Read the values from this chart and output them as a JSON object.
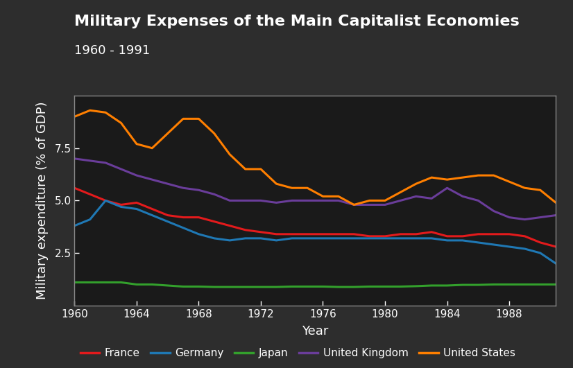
{
  "title": "Military Expenses of the Main Capitalist Economies",
  "subtitle": "1960 - 1991",
  "xlabel": "Year",
  "ylabel": "Military expenditure (% of GDP)",
  "background_color": "#2d2d2d",
  "plot_bg_color": "#1a1a1a",
  "text_color": "#ffffff",
  "spine_color": "#888888",
  "xlim": [
    1960,
    1991
  ],
  "ylim": [
    0,
    10
  ],
  "yticks": [
    2.5,
    5.0,
    7.5
  ],
  "xticks": [
    1960,
    1964,
    1968,
    1972,
    1976,
    1980,
    1984,
    1988
  ],
  "series": {
    "France": {
      "color": "#e31a1c",
      "years": [
        1960,
        1961,
        1962,
        1963,
        1964,
        1965,
        1966,
        1967,
        1968,
        1969,
        1970,
        1971,
        1972,
        1973,
        1974,
        1975,
        1976,
        1977,
        1978,
        1979,
        1980,
        1981,
        1982,
        1983,
        1984,
        1985,
        1986,
        1987,
        1988,
        1989,
        1990,
        1991
      ],
      "values": [
        5.6,
        5.3,
        5.0,
        4.8,
        4.9,
        4.6,
        4.3,
        4.2,
        4.2,
        4.0,
        3.8,
        3.6,
        3.5,
        3.4,
        3.4,
        3.4,
        3.4,
        3.4,
        3.4,
        3.3,
        3.3,
        3.4,
        3.4,
        3.5,
        3.3,
        3.3,
        3.4,
        3.4,
        3.4,
        3.3,
        3.0,
        2.8
      ]
    },
    "Germany": {
      "color": "#1f78b4",
      "years": [
        1960,
        1961,
        1962,
        1963,
        1964,
        1965,
        1966,
        1967,
        1968,
        1969,
        1970,
        1971,
        1972,
        1973,
        1974,
        1975,
        1976,
        1977,
        1978,
        1979,
        1980,
        1981,
        1982,
        1983,
        1984,
        1985,
        1986,
        1987,
        1988,
        1989,
        1990,
        1991
      ],
      "values": [
        3.8,
        4.1,
        5.0,
        4.7,
        4.6,
        4.3,
        4.0,
        3.7,
        3.4,
        3.2,
        3.1,
        3.2,
        3.2,
        3.1,
        3.2,
        3.2,
        3.2,
        3.2,
        3.2,
        3.2,
        3.2,
        3.2,
        3.2,
        3.2,
        3.1,
        3.1,
        3.0,
        2.9,
        2.8,
        2.7,
        2.5,
        2.0
      ]
    },
    "Japan": {
      "color": "#33a02c",
      "years": [
        1960,
        1961,
        1962,
        1963,
        1964,
        1965,
        1966,
        1967,
        1968,
        1969,
        1970,
        1971,
        1972,
        1973,
        1974,
        1975,
        1976,
        1977,
        1978,
        1979,
        1980,
        1981,
        1982,
        1983,
        1984,
        1985,
        1986,
        1987,
        1988,
        1989,
        1990,
        1991
      ],
      "values": [
        1.1,
        1.1,
        1.1,
        1.1,
        1.0,
        1.0,
        0.95,
        0.9,
        0.9,
        0.88,
        0.88,
        0.88,
        0.88,
        0.88,
        0.9,
        0.9,
        0.9,
        0.88,
        0.88,
        0.9,
        0.9,
        0.9,
        0.92,
        0.95,
        0.95,
        0.98,
        0.98,
        1.0,
        1.0,
        1.0,
        1.0,
        1.0
      ]
    },
    "United Kingdom": {
      "color": "#6a3d9a",
      "years": [
        1960,
        1961,
        1962,
        1963,
        1964,
        1965,
        1966,
        1967,
        1968,
        1969,
        1970,
        1971,
        1972,
        1973,
        1974,
        1975,
        1976,
        1977,
        1978,
        1979,
        1980,
        1981,
        1982,
        1983,
        1984,
        1985,
        1986,
        1987,
        1988,
        1989,
        1990,
        1991
      ],
      "values": [
        7.0,
        6.9,
        6.8,
        6.5,
        6.2,
        6.0,
        5.8,
        5.6,
        5.5,
        5.3,
        5.0,
        5.0,
        5.0,
        4.9,
        5.0,
        5.0,
        5.0,
        5.0,
        4.8,
        4.8,
        4.8,
        5.0,
        5.2,
        5.1,
        5.6,
        5.2,
        5.0,
        4.5,
        4.2,
        4.1,
        4.2,
        4.3
      ]
    },
    "United States": {
      "color": "#ff7f00",
      "years": [
        1960,
        1961,
        1962,
        1963,
        1964,
        1965,
        1966,
        1967,
        1968,
        1969,
        1970,
        1971,
        1972,
        1973,
        1974,
        1975,
        1976,
        1977,
        1978,
        1979,
        1980,
        1981,
        1982,
        1983,
        1984,
        1985,
        1986,
        1987,
        1988,
        1989,
        1990,
        1991
      ],
      "values": [
        9.0,
        9.3,
        9.2,
        8.7,
        7.7,
        7.5,
        8.2,
        8.9,
        8.9,
        8.2,
        7.2,
        6.5,
        6.5,
        5.8,
        5.6,
        5.6,
        5.2,
        5.2,
        4.8,
        5.0,
        5.0,
        5.4,
        5.8,
        6.1,
        6.0,
        6.1,
        6.2,
        6.2,
        5.9,
        5.6,
        5.5,
        4.9
      ]
    }
  },
  "legend_order": [
    "France",
    "Germany",
    "Japan",
    "United Kingdom",
    "United States"
  ],
  "linewidth": 2.2,
  "title_fontsize": 16,
  "subtitle_fontsize": 13,
  "axis_label_fontsize": 13,
  "tick_fontsize": 11
}
